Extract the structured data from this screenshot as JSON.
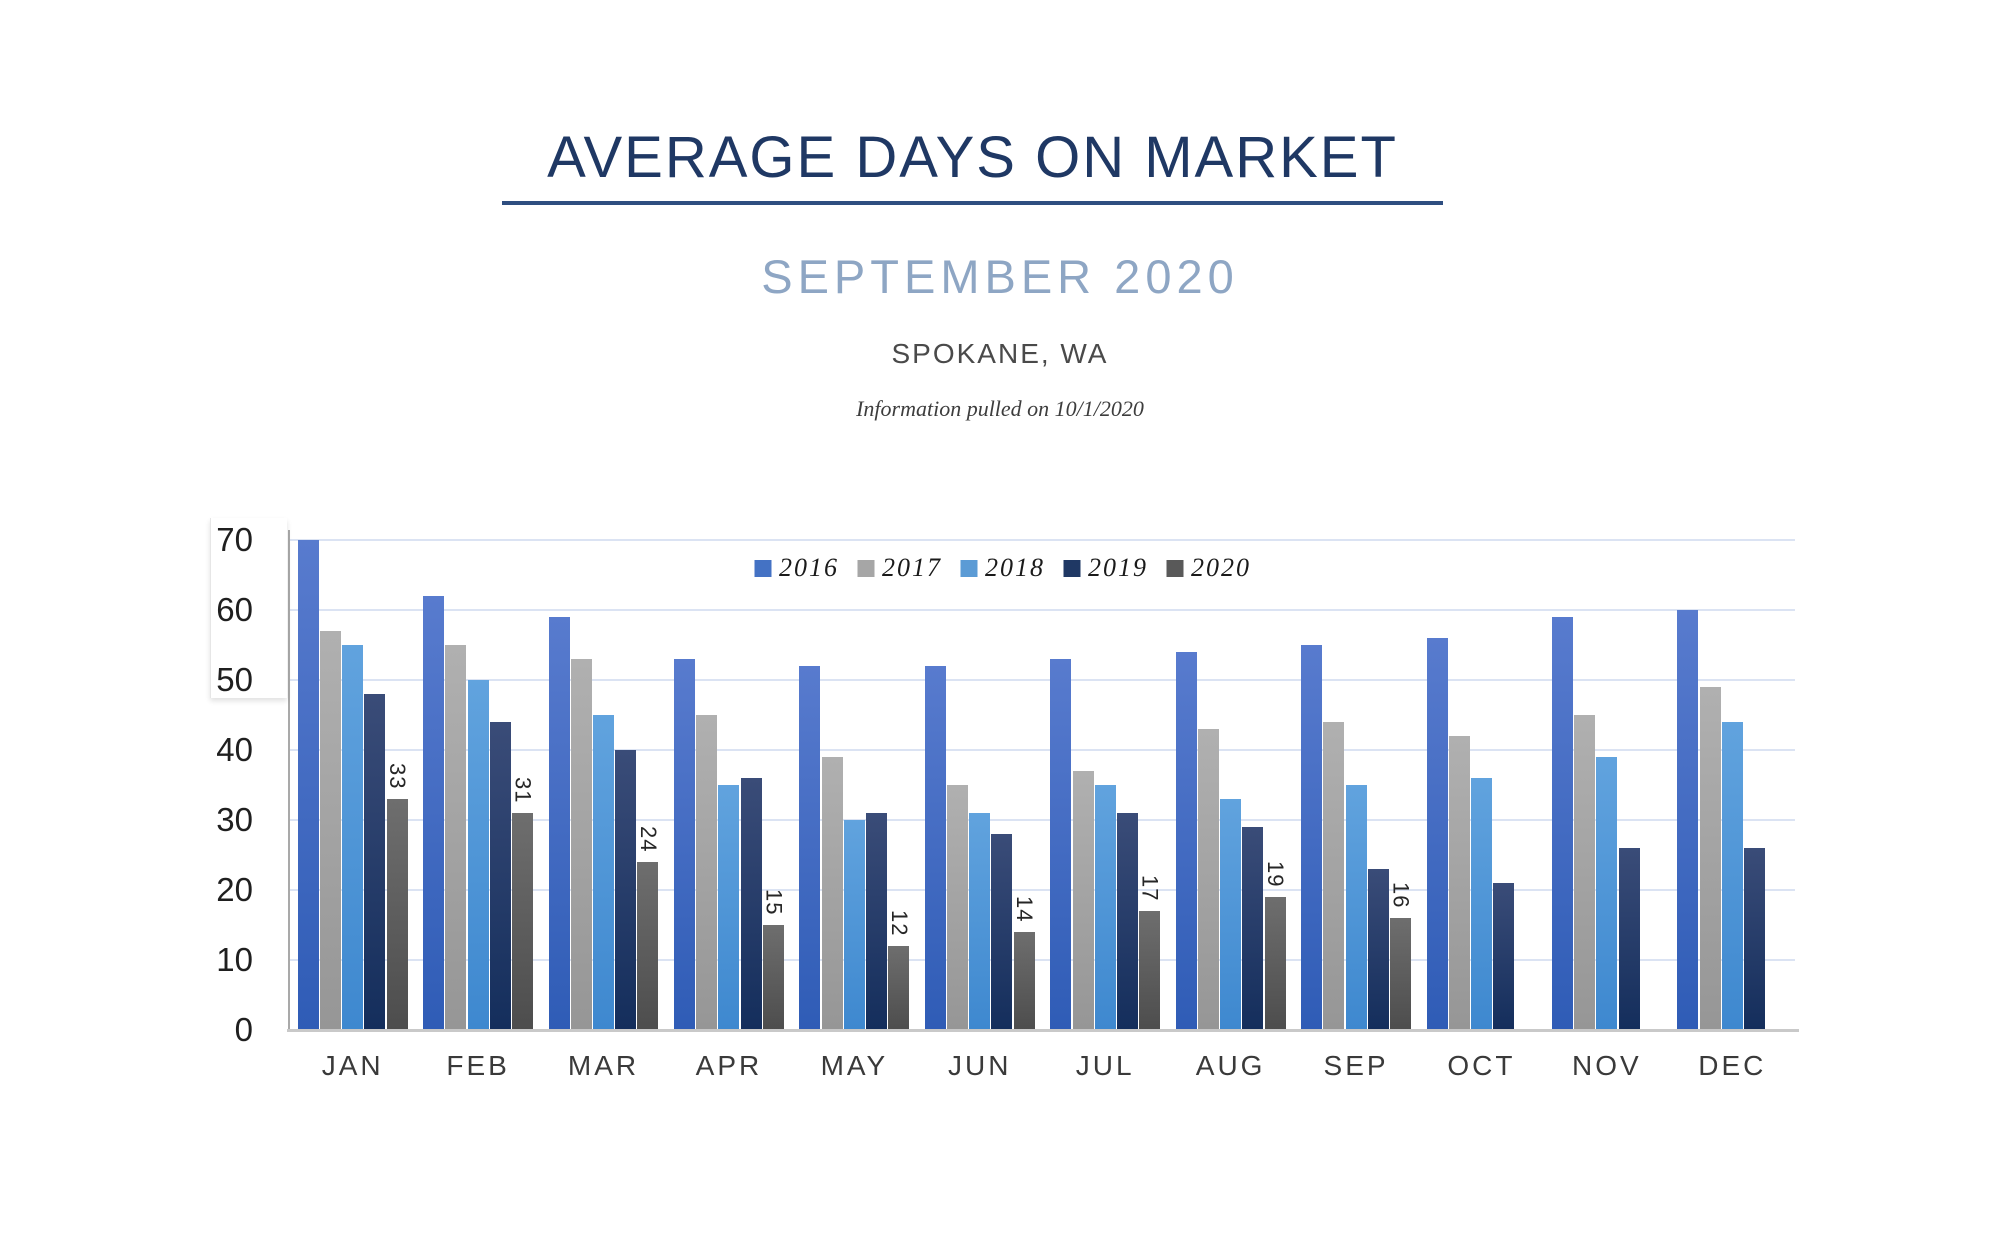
{
  "header": {
    "title": "AVERAGE DAYS ON MARKET",
    "subtitle": "SEPTEMBER 2020",
    "location": "SPOKANE, WA",
    "note": "Information pulled on 10/1/2020",
    "title_color": "#1F3864",
    "subtitle_color": "#8EA6C4",
    "underline_color": "#2E4E80"
  },
  "chart_data": {
    "type": "bar",
    "title": "AVERAGE DAYS ON MARKET",
    "subtitle": "SEPTEMBER 2020 — SPOKANE, WA",
    "xlabel": "",
    "ylabel": "",
    "ylim": [
      0,
      70
    ],
    "yticks": [
      0,
      10,
      20,
      30,
      40,
      50,
      60,
      70
    ],
    "grid": true,
    "legend_position": "top-center",
    "data_label_series": "2020",
    "gridline_color": "#DBE3F3",
    "categories": [
      "JAN",
      "FEB",
      "MAR",
      "APR",
      "MAY",
      "JUN",
      "JUL",
      "AUG",
      "SEP",
      "OCT",
      "NOV",
      "DEC"
    ],
    "series": [
      {
        "name": "2016",
        "color": "#4472C4",
        "gradient": [
          "#587BCE",
          "#2F5CB6"
        ],
        "values": [
          70,
          62,
          59,
          53,
          52,
          52,
          53,
          54,
          55,
          56,
          59,
          60
        ]
      },
      {
        "name": "2017",
        "color": "#A6A6A6",
        "gradient": [
          "#B0B0B0",
          "#969696"
        ],
        "values": [
          57,
          55,
          53,
          45,
          39,
          35,
          37,
          43,
          44,
          42,
          45,
          49
        ]
      },
      {
        "name": "2018",
        "color": "#5B9BD5",
        "gradient": [
          "#61A3DE",
          "#3E88CF"
        ],
        "values": [
          55,
          50,
          45,
          35,
          30,
          31,
          35,
          33,
          35,
          36,
          39,
          44
        ]
      },
      {
        "name": "2019",
        "color": "#1F3864",
        "gradient": [
          "#3A4C78",
          "#142E5C"
        ],
        "values": [
          48,
          44,
          40,
          36,
          31,
          28,
          31,
          29,
          23,
          21,
          26,
          26
        ]
      },
      {
        "name": "2020",
        "color": "#595959",
        "gradient": [
          "#6E6E6E",
          "#4D4D4D"
        ],
        "values": [
          33,
          31,
          24,
          15,
          12,
          14,
          17,
          19,
          16,
          null,
          null,
          null
        ]
      }
    ]
  }
}
